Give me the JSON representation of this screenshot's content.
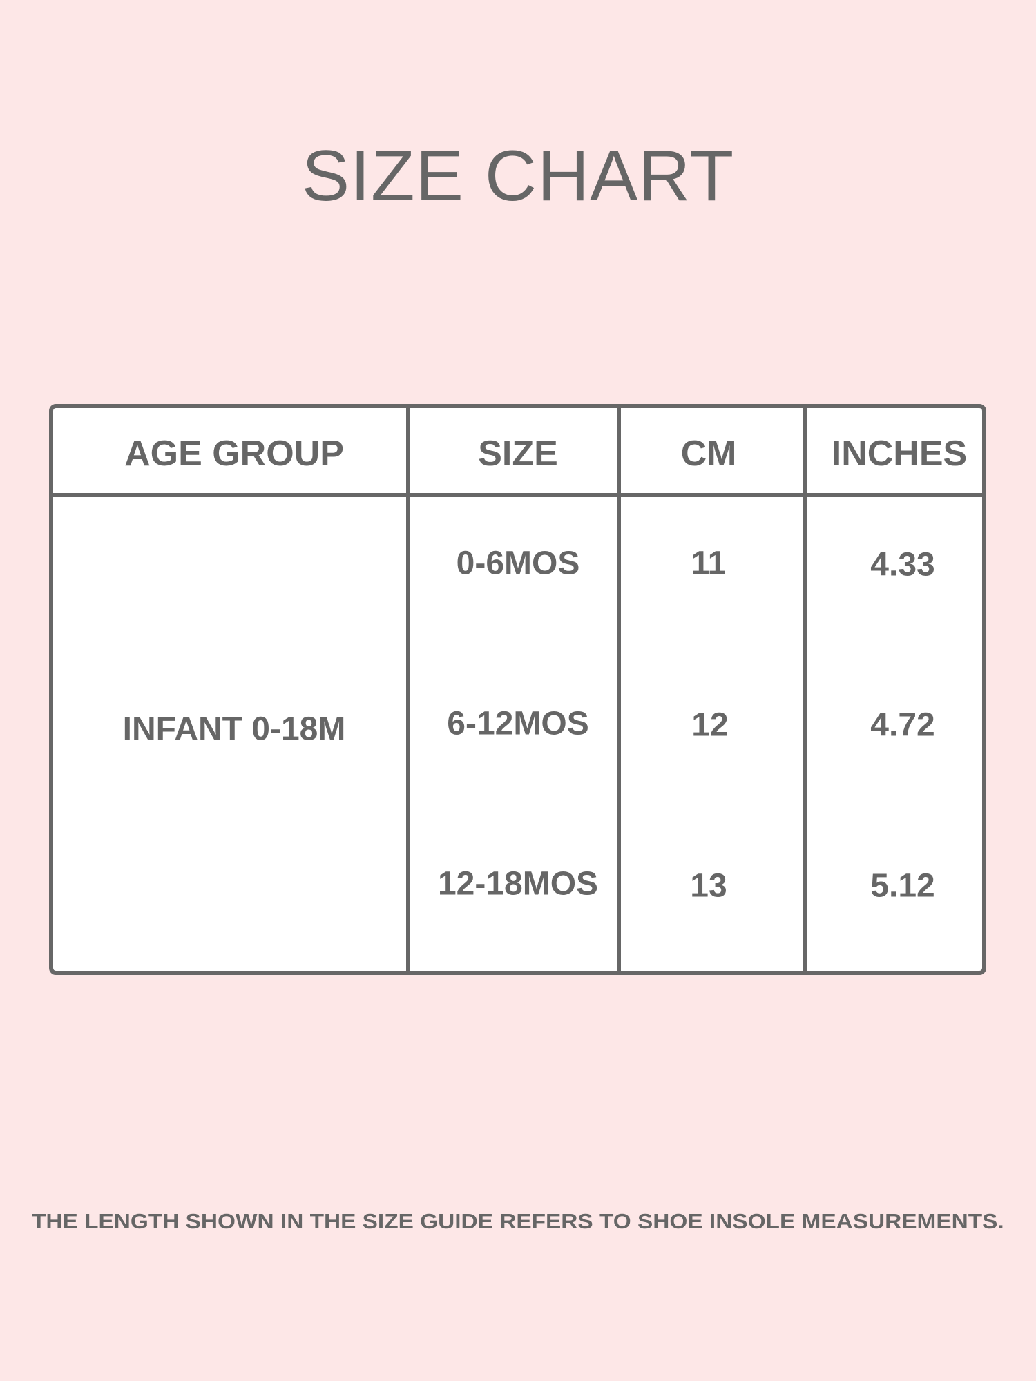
{
  "title": "SIZE CHART",
  "table": {
    "headers": [
      "AGE GROUP",
      "SIZE",
      "CM",
      "INCHES"
    ],
    "age_group": "INFANT 0-18M",
    "rows": [
      {
        "size": "0-6MOS",
        "cm": "11",
        "inches": "4.33"
      },
      {
        "size": "6-12MOS",
        "cm": "12",
        "inches": "4.72"
      },
      {
        "size": "12-18MOS",
        "cm": "13",
        "inches": "5.12"
      }
    ]
  },
  "footer": "THE LENGTH SHOWN IN THE SIZE GUIDE REFERS TO SHOE INSOLE MEASUREMENTS.",
  "colors": {
    "background": "#fde7e7",
    "text": "#666666",
    "border": "#676767"
  }
}
